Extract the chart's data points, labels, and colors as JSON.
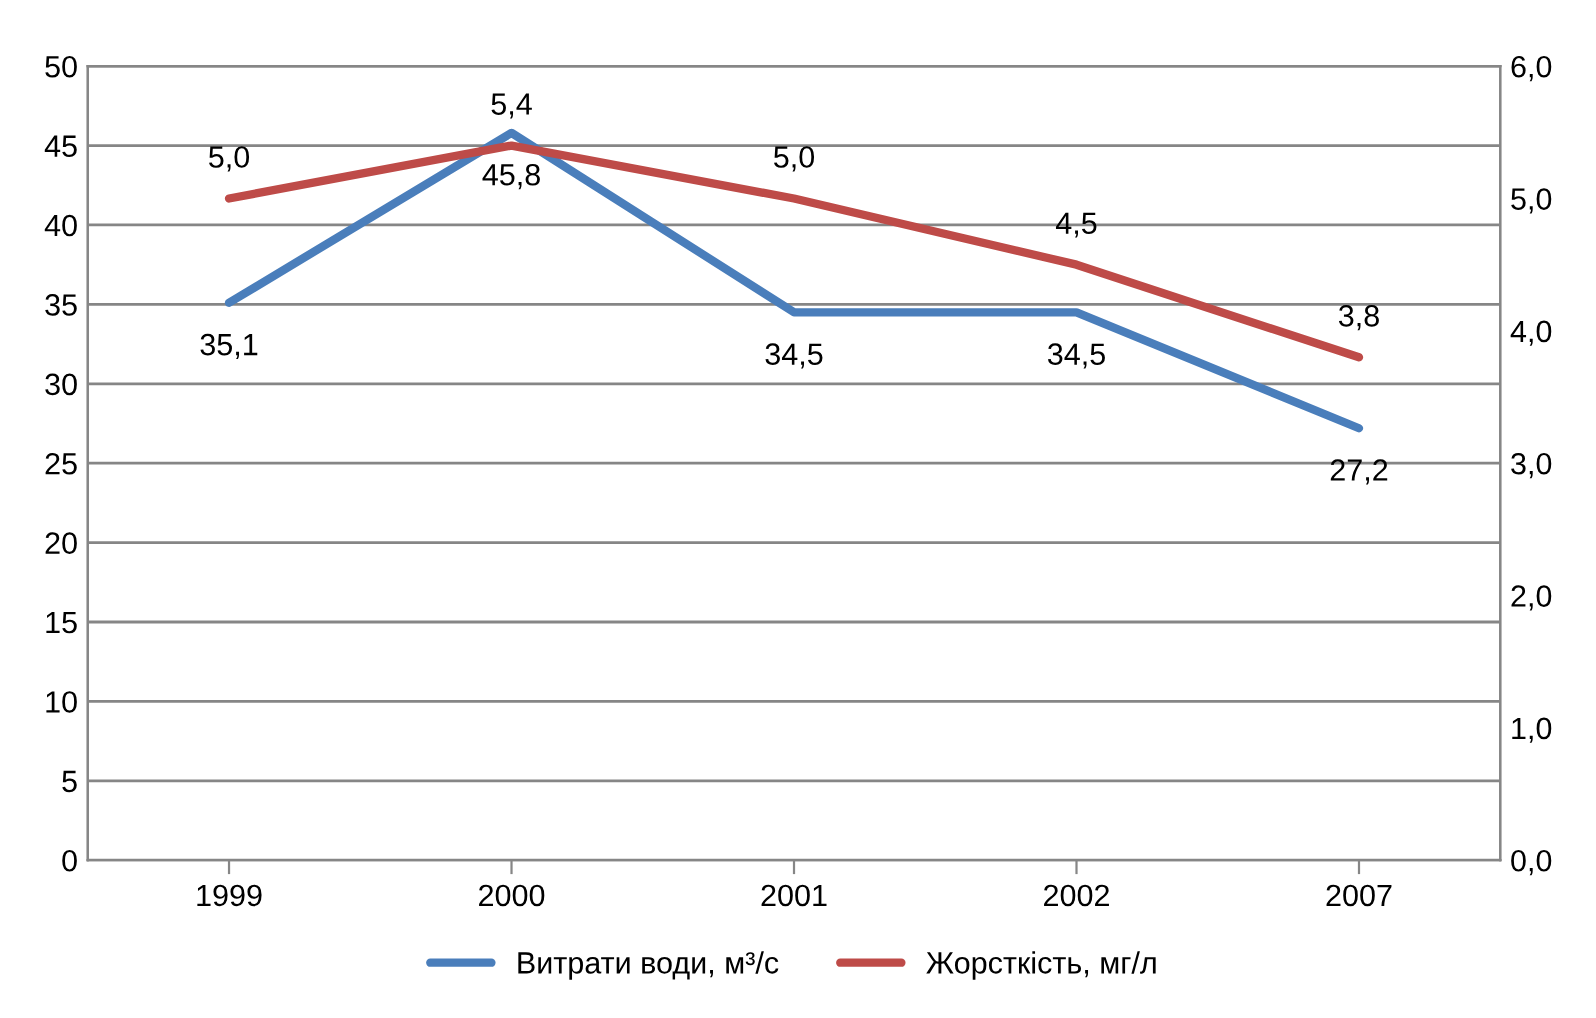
{
  "chart_data": {
    "type": "line",
    "categories": [
      "1999",
      "2000",
      "2001",
      "2002",
      "2007"
    ],
    "series": [
      {
        "name": "Витрати води, м³/с",
        "color": "#4a7ebb",
        "values": [
          35.1,
          45.8,
          34.5,
          34.5,
          27.2
        ],
        "value_labels": [
          "35,1",
          "45,8",
          "34,5",
          "34,5",
          "27,2"
        ]
      },
      {
        "name": "Жорсткість, мг/л",
        "color": "#be4b48",
        "axis": "y2",
        "values": [
          5.0,
          5.4,
          5.0,
          4.5,
          3.8
        ],
        "value_labels": [
          "5,0",
          "5,4",
          "5,0",
          "4,5",
          "3,8"
        ]
      }
    ],
    "ylim": [
      0,
      50
    ],
    "yticks": [
      0,
      5,
      10,
      15,
      20,
      25,
      30,
      35,
      40,
      45,
      50
    ],
    "y2lim": [
      0,
      6
    ],
    "y2ticks": [
      {
        "value": 0,
        "label": "0,0"
      },
      {
        "value": 1,
        "label": "1,0"
      },
      {
        "value": 2,
        "label": "2,0"
      },
      {
        "value": 3,
        "label": "3,0"
      },
      {
        "value": 4,
        "label": "4,0"
      },
      {
        "value": 5,
        "label": "5,0"
      },
      {
        "value": 6,
        "label": "6,0"
      }
    ],
    "grid": "y",
    "legend": "bottom",
    "marker": "none",
    "line_style": "solid"
  }
}
